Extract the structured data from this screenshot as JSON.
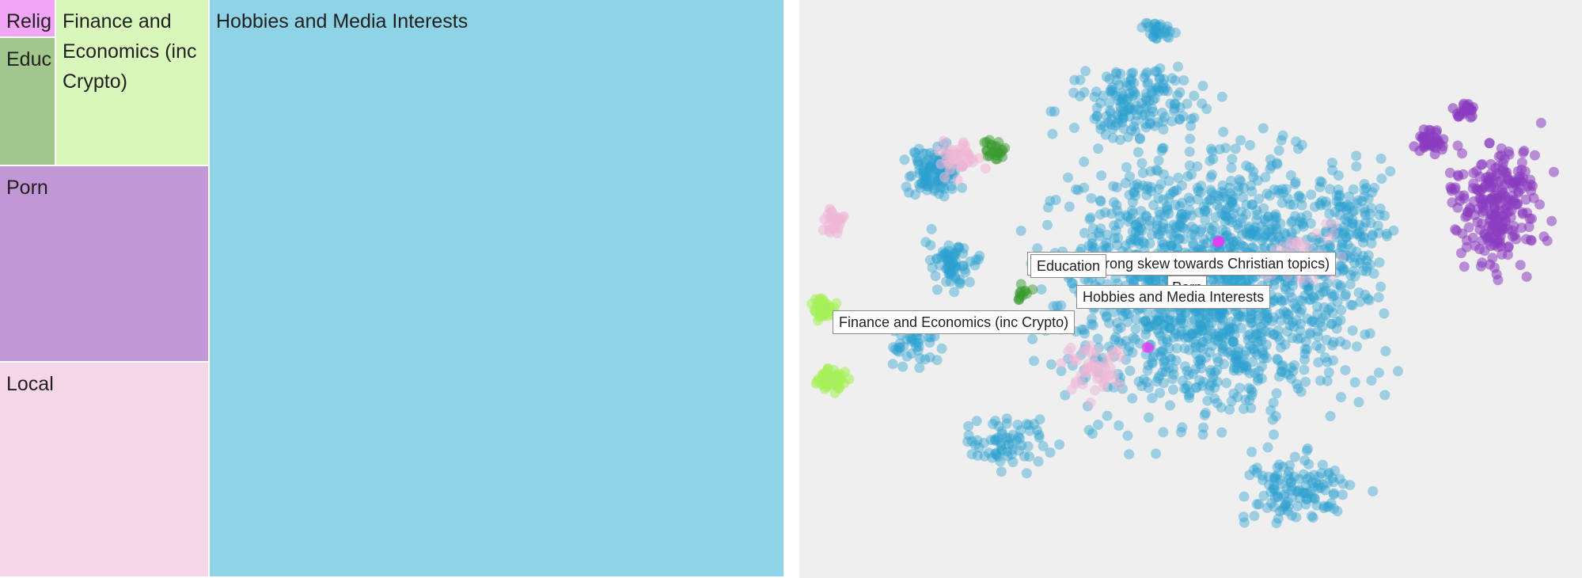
{
  "treemap": {
    "tiles": [
      {
        "name": "tile-religion",
        "label": "Relig",
        "color": "#f0a6f5"
      },
      {
        "name": "tile-education",
        "label": "Educ",
        "color": "#a1c78d"
      },
      {
        "name": "tile-finance",
        "label": "Finance and Economics (inc Crypto)",
        "color": "#daf7bb"
      },
      {
        "name": "tile-porn",
        "label": "Porn",
        "color": "#c297d6"
      },
      {
        "name": "tile-local",
        "label": "Local",
        "color": "#f4d6e6"
      },
      {
        "name": "tile-hobbies",
        "label": "Hobbies and Media Interests",
        "color": "#8fd3e7"
      }
    ]
  },
  "scatter": {
    "background": "#efefef",
    "labels": {
      "religion": "Religion (strong skew towards Christian topics)",
      "education": "Education",
      "porn": "Porn",
      "hobbies": "Hobbies and Media Interests",
      "finance": "Finance and Economics (inc Crypto)"
    },
    "colors": {
      "hobbies": "#2aa0d0",
      "porn": "#8a3cc0",
      "local": "#f0b6d6",
      "finance": "#a6f05a",
      "education": "#3a9a30",
      "religion": "#e040f0"
    }
  }
}
